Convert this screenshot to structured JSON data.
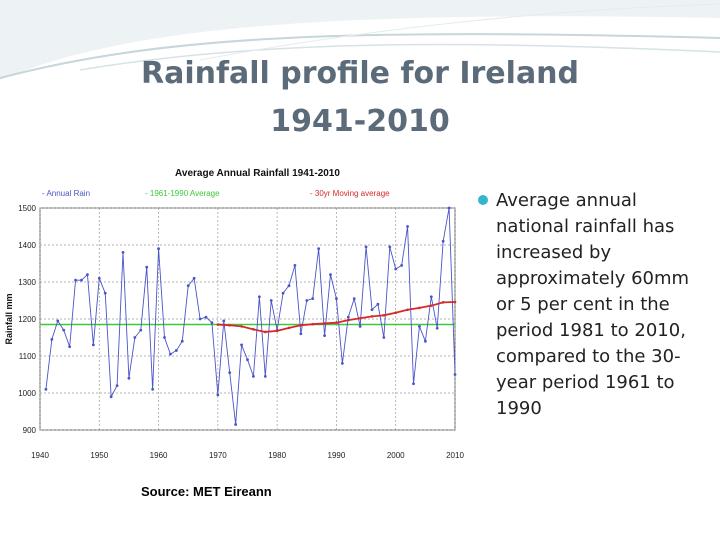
{
  "slide": {
    "title_line1": "Rainfall profile for Ireland",
    "title_line2": "1941-2010",
    "bullet": "Average annual national rainfall has increased by approximately 60mm or 5 per cent in the period 1981 to 2010, compared to the 30-year period 1961 to 1990",
    "source": "Source: MET Eireann"
  },
  "colors": {
    "title": "#5b6b7a",
    "bullet": "#33b5cc",
    "annual": "#4a55c8",
    "average": "#3cc83c",
    "moving": "#d42a2a"
  },
  "chart_data": {
    "type": "line",
    "title": "Average Annual Rainfall 1941-2010",
    "ylabel": "Rainfall mm",
    "xlim": [
      1940,
      2010
    ],
    "ylim": [
      900,
      1500
    ],
    "xticks": [
      1940,
      1950,
      1960,
      1970,
      1980,
      1990,
      2000,
      2010
    ],
    "yticks": [
      900,
      1000,
      1100,
      1200,
      1300,
      1400,
      1500
    ],
    "grid": true,
    "legend_position": "top",
    "series": [
      {
        "name": "- Annual Rain",
        "x": [
          1941,
          1942,
          1943,
          1944,
          1945,
          1946,
          1947,
          1948,
          1949,
          1950,
          1951,
          1952,
          1953,
          1954,
          1955,
          1956,
          1957,
          1958,
          1959,
          1960,
          1961,
          1962,
          1963,
          1964,
          1965,
          1966,
          1967,
          1968,
          1969,
          1970,
          1971,
          1972,
          1973,
          1974,
          1975,
          1976,
          1977,
          1978,
          1979,
          1980,
          1981,
          1982,
          1983,
          1984,
          1985,
          1986,
          1987,
          1988,
          1989,
          1990,
          1991,
          1992,
          1993,
          1994,
          1995,
          1996,
          1997,
          1998,
          1999,
          2000,
          2001,
          2002,
          2003,
          2004,
          2005,
          2006,
          2007,
          2008,
          2009,
          2010
        ],
        "values": [
          1010,
          1145,
          1195,
          1170,
          1125,
          1305,
          1305,
          1320,
          1130,
          1310,
          1270,
          990,
          1020,
          1380,
          1040,
          1150,
          1170,
          1340,
          1010,
          1390,
          1150,
          1105,
          1115,
          1140,
          1290,
          1310,
          1200,
          1205,
          1190,
          995,
          1195,
          1055,
          915,
          1130,
          1090,
          1045,
          1260,
          1045,
          1250,
          1170,
          1270,
          1290,
          1345,
          1160,
          1250,
          1255,
          1390,
          1155,
          1320,
          1255,
          1080,
          1205,
          1255,
          1180,
          1395,
          1225,
          1240,
          1150,
          1395,
          1335,
          1345,
          1450,
          1025,
          1180,
          1140,
          1260,
          1175,
          1410,
          1500,
          1050
        ]
      },
      {
        "name": "- 1961-1990 Average",
        "x": [
          1940,
          2010
        ],
        "values": [
          1185,
          1185
        ]
      },
      {
        "name": "- 30yr Moving average",
        "x": [
          1970,
          1972,
          1974,
          1976,
          1978,
          1980,
          1982,
          1984,
          1986,
          1988,
          1990,
          1992,
          1994,
          1996,
          1998,
          2000,
          2002,
          2004,
          2006,
          2008,
          2010
        ],
        "values": [
          1185,
          1183,
          1180,
          1172,
          1165,
          1168,
          1176,
          1183,
          1186,
          1188,
          1190,
          1197,
          1202,
          1207,
          1210,
          1217,
          1225,
          1230,
          1236,
          1245,
          1246
        ]
      }
    ]
  }
}
